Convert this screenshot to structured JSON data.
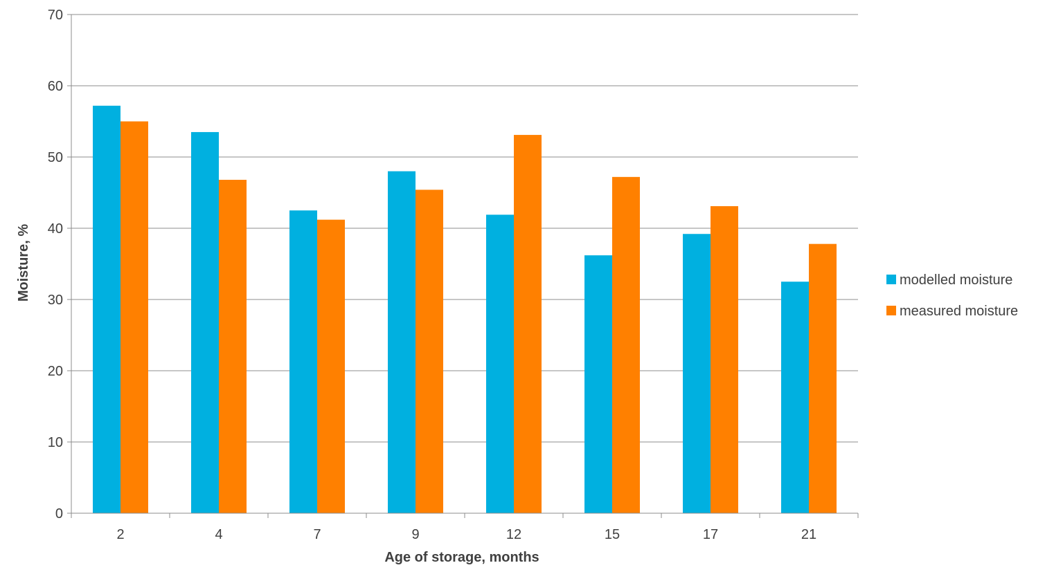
{
  "chart_data": {
    "type": "bar",
    "title": "",
    "xlabel": "Age of storage, months",
    "ylabel": "Moisture, %",
    "categories": [
      "2",
      "4",
      "7",
      "9",
      "12",
      "15",
      "17",
      "21"
    ],
    "series": [
      {
        "name": "modelled moisture",
        "color": "#00b0e0",
        "values": [
          57.2,
          53.5,
          42.5,
          48.0,
          41.9,
          36.2,
          39.2,
          32.5
        ]
      },
      {
        "name": "measured moisture",
        "color": "#ff8000",
        "values": [
          55.0,
          46.8,
          41.2,
          45.4,
          53.1,
          47.2,
          43.1,
          37.8
        ]
      }
    ],
    "ylim": [
      0,
      70
    ],
    "yticks": [
      0,
      10,
      20,
      30,
      40,
      50,
      60,
      70
    ],
    "grid": true,
    "legend_position": "right"
  }
}
